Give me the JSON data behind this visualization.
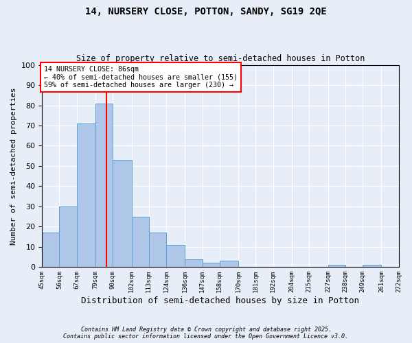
{
  "title1": "14, NURSERY CLOSE, POTTON, SANDY, SG19 2QE",
  "title2": "Size of property relative to semi-detached houses in Potton",
  "xlabel": "Distribution of semi-detached houses by size in Potton",
  "ylabel": "Number of semi-detached properties",
  "bins": [
    45,
    56,
    67,
    79,
    90,
    102,
    113,
    124,
    136,
    147,
    158,
    170,
    181,
    192,
    204,
    215,
    227,
    238,
    249,
    261,
    272
  ],
  "values": [
    17,
    30,
    71,
    81,
    53,
    25,
    17,
    11,
    4,
    2,
    3,
    0,
    0,
    0,
    0,
    0,
    1,
    0,
    1,
    0
  ],
  "bar_color": "#aec6e8",
  "bar_edge_color": "#5a9fd4",
  "property_size": 86,
  "annotation_title": "14 NURSERY CLOSE: 86sqm",
  "annotation_line1": "← 40% of semi-detached houses are smaller (155)",
  "annotation_line2": "59% of semi-detached houses are larger (230) →",
  "vline_color": "red",
  "box_edge_color": "red",
  "footer1": "Contains HM Land Registry data © Crown copyright and database right 2025.",
  "footer2": "Contains public sector information licensed under the Open Government Licence v3.0.",
  "background_color": "#e8eef8",
  "plot_background": "#e8eef8",
  "yticks": [
    0,
    10,
    20,
    30,
    40,
    50,
    60,
    70,
    80,
    90,
    100
  ],
  "ylim": [
    0,
    100
  ]
}
